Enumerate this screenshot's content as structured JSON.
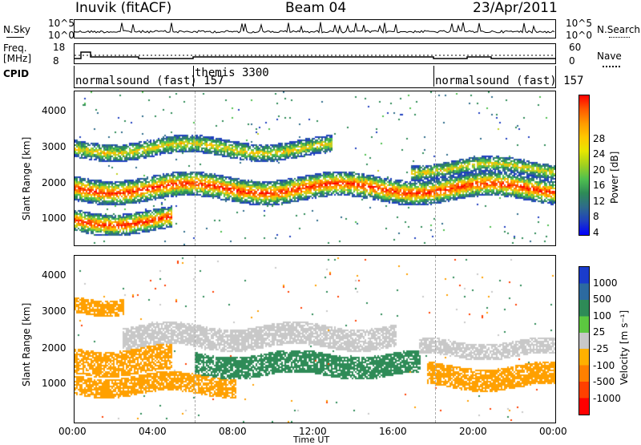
{
  "header": {
    "station": "Inuvik (fitACF)",
    "beam": "Beam 04",
    "date": "23/Apr/2011"
  },
  "left_labels": {
    "nsky": "N.Sky",
    "freq": "Freq.",
    "freq_unit": "[MHz]",
    "cpid": "CPID"
  },
  "right_labels": {
    "nsearch": "N.Search",
    "nave": "Nave"
  },
  "noise_panel": {
    "left_ticks": [
      "10^5",
      "10^0"
    ],
    "right_ticks": [
      "10^5",
      "10^0"
    ]
  },
  "freq_panel": {
    "left_ticks": [
      "18",
      "8"
    ],
    "right_ticks": [
      "60",
      "0"
    ]
  },
  "cpid_panel": {
    "segments": [
      {
        "label": "normalsound (fast) 157",
        "start_hour": 0
      },
      {
        "label": "themis 3300",
        "start_hour": 6
      },
      {
        "label": "normalsound (fast) 157",
        "start_hour": 18
      }
    ]
  },
  "chart_data": [
    {
      "type": "heatmap",
      "name": "power",
      "ylabel": "Slant Range [km]",
      "yticks": [
        "4000",
        "3000",
        "2000",
        "1000"
      ],
      "colorbar_label": "Power [dB]",
      "colorbar_ticks": [
        "28",
        "24",
        "20",
        "16",
        "12",
        "8",
        "4"
      ],
      "colorbar_colors": [
        "#ff0000",
        "#ff5a00",
        "#ff9a00",
        "#ffc800",
        "#e6e600",
        "#a0d020",
        "#4fbf4f",
        "#2e8b57",
        "#2e6b8b",
        "#1f3fbf",
        "#0000ff"
      ]
    },
    {
      "type": "heatmap",
      "name": "velocity",
      "xlabel": "Time UT",
      "ylabel": "Slant Range [km]",
      "yticks": [
        "4000",
        "3000",
        "2000",
        "1000"
      ],
      "xticks": [
        "00:00",
        "04:00",
        "08:00",
        "12:00",
        "16:00",
        "20:00",
        "00:00"
      ],
      "colorbar_label": "Velocity [m s⁻¹]",
      "colorbar_ticks": [
        "1000",
        "500",
        "100",
        "25",
        "-25",
        "-100",
        "-500",
        "-1000"
      ],
      "colorbar_colors": [
        "#1a3ccc",
        "#2c6aa0",
        "#2e8b57",
        "#5cc840",
        "#c8c8c8",
        "#ffb000",
        "#ff8000",
        "#ff4000",
        "#ff0000"
      ]
    }
  ]
}
